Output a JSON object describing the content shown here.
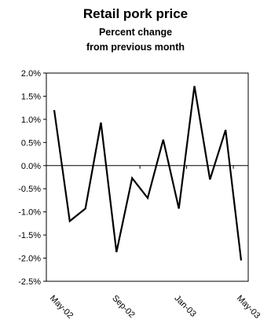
{
  "chart_data": {
    "type": "line",
    "title": "Retail pork price",
    "subtitle": [
      "Percent change",
      "from previous month"
    ],
    "xlabel": "",
    "ylabel": "",
    "ylim": [
      -2.5,
      2.0
    ],
    "y_ticks": [
      "2.0%",
      "1.5%",
      "1.0%",
      "0.5%",
      "0.0%",
      "-0.5%",
      "-1.0%",
      "-1.5%",
      "-2.0%",
      "-2.5%"
    ],
    "y_tick_values": [
      2.0,
      1.5,
      1.0,
      0.5,
      0.0,
      -0.5,
      -1.0,
      -1.5,
      -2.0,
      -2.5
    ],
    "x_tick_labels": [
      "May-02",
      "Sep-02",
      "Jan-03",
      "May-03"
    ],
    "x_tick_label_indices": [
      0,
      4,
      8,
      12
    ],
    "grid": false,
    "series": [
      {
        "x": [
          "May-02",
          "Jun-02",
          "Jul-02",
          "Aug-02",
          "Sep-02",
          "Oct-02",
          "Nov-02",
          "Dec-02",
          "Jan-03",
          "Feb-03",
          "Mar-03",
          "Apr-03",
          "May-03"
        ],
        "values": [
          1.2,
          -1.2,
          -0.93,
          0.93,
          -1.87,
          -0.27,
          -0.7,
          0.56,
          -0.93,
          1.72,
          -0.3,
          0.77,
          -2.05
        ],
        "color": "#000000"
      }
    ]
  }
}
